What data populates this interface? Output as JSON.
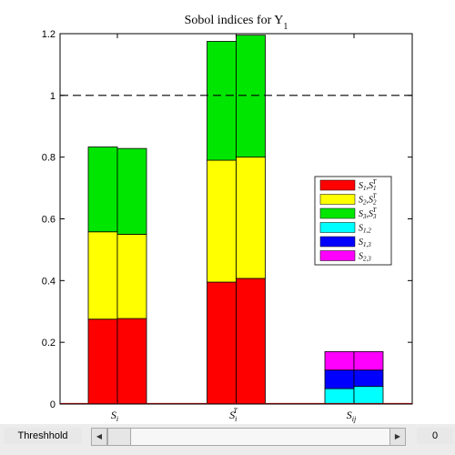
{
  "chart_data": {
    "type": "bar",
    "stacked": true,
    "title": "Sobol indices for Y",
    "title_sub": "1",
    "categories": [
      "S_i",
      "S_i^T",
      "S_ij"
    ],
    "category_labels": [
      {
        "base": "S",
        "sub": "i",
        "sup": ""
      },
      {
        "base": "S",
        "sub": "i",
        "sup": "T"
      },
      {
        "base": "S",
        "sub": "ij",
        "sup": ""
      }
    ],
    "ylim": [
      0,
      1.2
    ],
    "yticks": [
      "0",
      "0.2",
      "0.4",
      "0.6",
      "0.8",
      "1",
      "1.2"
    ],
    "ytick_values": [
      0,
      0.2,
      0.4,
      0.6,
      0.8,
      1.0,
      1.2
    ],
    "reference_line": 1.0,
    "grid": false,
    "legend_position": "right",
    "colors": {
      "s1": "#ff0000",
      "s2": "#ffff00",
      "s3": "#00e600",
      "s12": "#00ffff",
      "s13": "#0000ff",
      "s23": "#ff00ff",
      "baseline": "#d00000"
    },
    "legend": [
      {
        "key": "s1",
        "base": "S",
        "sub": "1",
        "base2": "S",
        "sub2": "1",
        "sup2": "T"
      },
      {
        "key": "s2",
        "base": "S",
        "sub": "2",
        "base2": "S",
        "sub2": "2",
        "sup2": "T"
      },
      {
        "key": "s3",
        "base": "S",
        "sub": "3",
        "base2": "S",
        "sub2": "3",
        "sup2": "T"
      },
      {
        "key": "s12",
        "base": "S",
        "sub": "1,2"
      },
      {
        "key": "s13",
        "base": "S",
        "sub": "1,3"
      },
      {
        "key": "s23",
        "base": "S",
        "sub": "2,3"
      }
    ],
    "groups": [
      {
        "category": "S_i",
        "bars": [
          [
            {
              "key": "s1",
              "value": 0.275
            },
            {
              "key": "s2",
              "value": 0.283
            },
            {
              "key": "s3",
              "value": 0.275
            }
          ],
          [
            {
              "key": "s1",
              "value": 0.277
            },
            {
              "key": "s2",
              "value": 0.273
            },
            {
              "key": "s3",
              "value": 0.278
            }
          ]
        ]
      },
      {
        "category": "S_i^T",
        "bars": [
          [
            {
              "key": "s1",
              "value": 0.395
            },
            {
              "key": "s2",
              "value": 0.395
            },
            {
              "key": "s3",
              "value": 0.385
            }
          ],
          [
            {
              "key": "s1",
              "value": 0.407
            },
            {
              "key": "s2",
              "value": 0.393
            },
            {
              "key": "s3",
              "value": 0.395
            }
          ]
        ]
      },
      {
        "category": "S_ij",
        "bars": [
          [
            {
              "key": "s12",
              "value": 0.05
            },
            {
              "key": "s13",
              "value": 0.06
            },
            {
              "key": "s23",
              "value": 0.06
            }
          ],
          [
            {
              "key": "s12",
              "value": 0.057
            },
            {
              "key": "s13",
              "value": 0.053
            },
            {
              "key": "s23",
              "value": 0.06
            }
          ]
        ]
      }
    ]
  },
  "controls": {
    "threshold_label": "Threshhold",
    "threshold_value": "0",
    "slider_left_icon": "arrow-left-icon",
    "slider_right_icon": "arrow-right-icon"
  }
}
